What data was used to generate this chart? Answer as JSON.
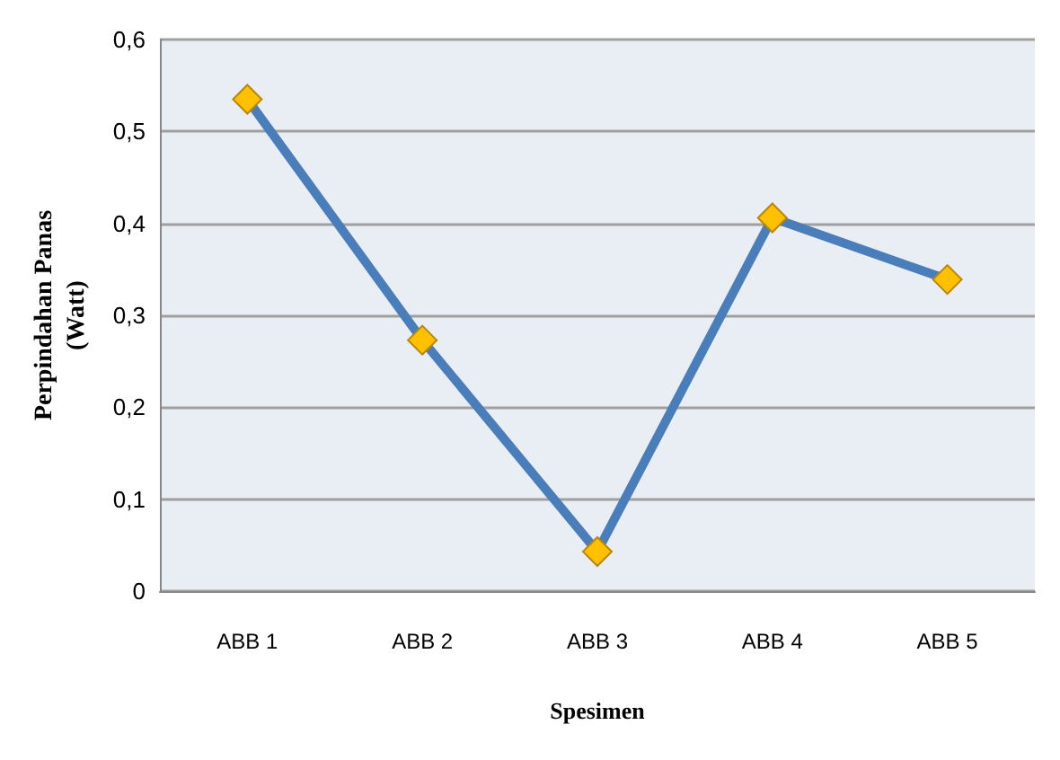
{
  "chart_data": {
    "type": "line",
    "xlabel": "Spesimen",
    "ylabel": "Perpindahan Panas\n(Watt)",
    "categories": [
      "ABB 1",
      "ABB 2",
      "ABB 3",
      "ABB 4",
      "ABB 5"
    ],
    "series": [
      {
        "color": "#4a7ebb",
        "colors": [
          "#ffc000",
          "#ffc000",
          "#ffc000",
          "#ffc000",
          "#ffc000"
        ],
        "values": [
          0.535,
          0.273,
          0.043,
          0.406,
          0.339
        ]
      }
    ],
    "ylim": [
      0,
      0.6
    ],
    "yticks": [
      {
        "value": 0,
        "label": "0"
      },
      {
        "value": 0.1,
        "label": "0,1"
      },
      {
        "value": 0.2,
        "label": "0,2"
      },
      {
        "value": 0.3,
        "label": "0,3"
      },
      {
        "value": 0.4,
        "label": "0,4"
      },
      {
        "value": 0.5,
        "label": "0,5"
      },
      {
        "value": 0.6,
        "label": "0,6"
      }
    ],
    "grid": "y",
    "marker": "diamond",
    "line_style": "solid"
  }
}
